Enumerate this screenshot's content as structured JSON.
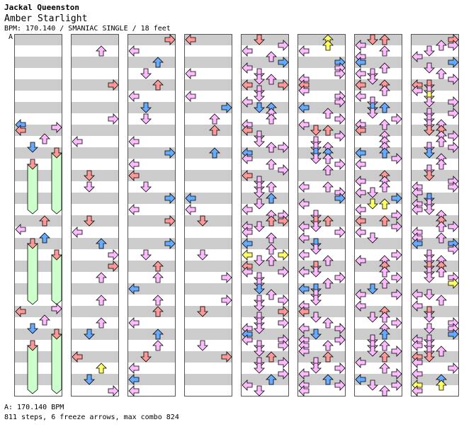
{
  "header": {
    "artist": "Jackal Queenston",
    "title": "Amber Starlight",
    "meta": "BPM: 170.140 / SMANIAC SINGLE / 18 feet"
  },
  "marker_label": "A",
  "footer": {
    "bpm_note": "A: 170.140 BPM",
    "stats": "811 steps, 6 freeze arrows, max combo 824"
  },
  "colors": {
    "stripe": "#cccccc",
    "border": "#555555",
    "quarter_red": "#ff9999",
    "eighth_blue": "#66aaff",
    "sixteenth_pink": "#ffbbff",
    "other_yellow": "#ffff66",
    "freeze_green": "#ccffcc"
  },
  "chart_data": {
    "type": "step-chart",
    "columns": 8,
    "measures_per_column": 8,
    "lanes": [
      "left",
      "down",
      "up",
      "right"
    ],
    "freeze_count": 6,
    "steps": 811,
    "max_combo": 824
  }
}
